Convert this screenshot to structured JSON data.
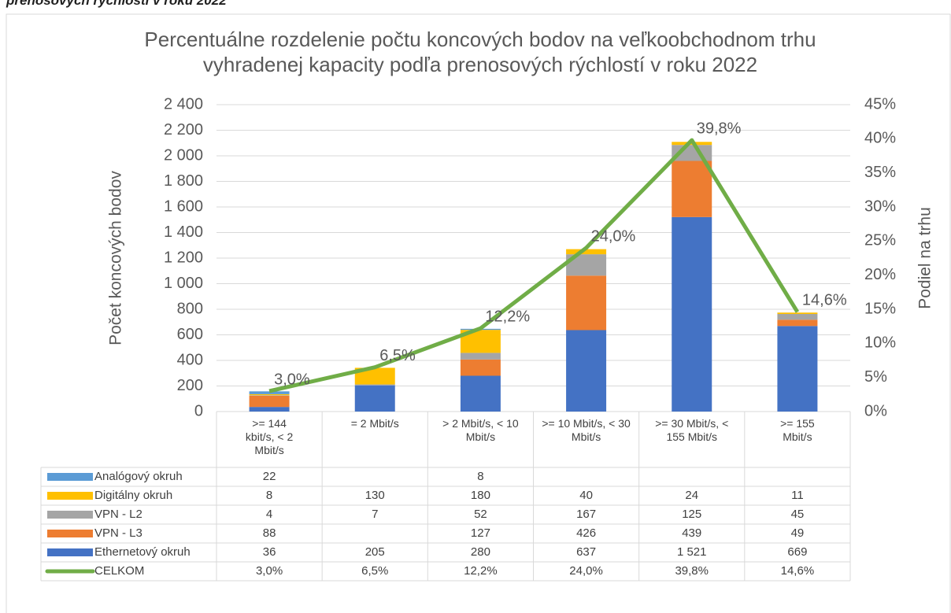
{
  "caption": "prenosových rýchlostí v roku 2022",
  "chart_data": {
    "type": "bar",
    "stacked": true,
    "title": "Percentuálne rozdelenie počtu koncových bodov na veľkoobchodnom trhu vyhradenej kapacity podľa prenosových rýchlostí v roku 2022",
    "ylabel": "Počet koncových bodov",
    "y2label": "Podiel na trhu",
    "categories": [
      ">= 144 kbit/s, < 2 Mbit/s",
      "= 2 Mbit/s",
      "> 2 Mbit/s, < 10 Mbit/s",
      ">= 10 Mbit/s, < 30 Mbit/s",
      ">= 30 Mbit/s, < 155 Mbit/s",
      ">= 155 Mbit/s"
    ],
    "series": [
      {
        "name": "Ethernetový okruh",
        "color": "#4472c4",
        "values": [
          36,
          205,
          280,
          637,
          1521,
          669
        ],
        "value_labels": [
          "36",
          "205",
          "280",
          "637",
          "1 521",
          "669"
        ]
      },
      {
        "name": "VPN - L3",
        "color": "#ed7d31",
        "values": [
          88,
          null,
          127,
          426,
          439,
          49
        ]
      },
      {
        "name": "VPN - L2",
        "color": "#a5a5a5",
        "values": [
          4,
          7,
          52,
          167,
          125,
          45
        ]
      },
      {
        "name": "Digitálny okruh",
        "color": "#ffc000",
        "values": [
          8,
          130,
          180,
          40,
          24,
          11
        ]
      },
      {
        "name": "Analógový okruh",
        "color": "#5b9bd5",
        "values": [
          22,
          null,
          8,
          null,
          null,
          null
        ]
      },
      {
        "name": "CELKOM",
        "color": "#70ad47",
        "type": "line",
        "axis": "y2",
        "values": [
          3.0,
          6.5,
          12.2,
          24.0,
          39.8,
          14.6
        ],
        "value_labels": [
          "3,0%",
          "6,5%",
          "12,2%",
          "24,0%",
          "39,8%",
          "14,6%"
        ]
      }
    ],
    "ylim": [
      0,
      2400
    ],
    "yticks": [
      0,
      200,
      400,
      600,
      800,
      {
        "value": 1000,
        "label": "1 000"
      },
      {
        "value": 1200,
        "label": "1 200"
      },
      {
        "value": 1400,
        "label": "1 400"
      },
      {
        "value": 1600,
        "label": "1 600"
      },
      {
        "value": 1800,
        "label": "1 800"
      },
      {
        "value": 2000,
        "label": "2 000"
      },
      {
        "value": 2200,
        "label": "2 200"
      },
      {
        "value": 2400,
        "label": "2 400"
      }
    ],
    "y2lim": [
      0,
      45
    ],
    "y2ticks": [
      {
        "value": 0,
        "label": "0%"
      },
      {
        "value": 5,
        "label": "5%"
      },
      {
        "value": 10,
        "label": "10%"
      },
      {
        "value": 15,
        "label": "15%"
      },
      {
        "value": 20,
        "label": "20%"
      },
      {
        "value": 25,
        "label": "25%"
      },
      {
        "value": 30,
        "label": "30%"
      },
      {
        "value": 35,
        "label": "35%"
      },
      {
        "value": 40,
        "label": "40%"
      },
      {
        "value": 45,
        "label": "45%"
      }
    ],
    "grid": true,
    "data_table": true
  }
}
